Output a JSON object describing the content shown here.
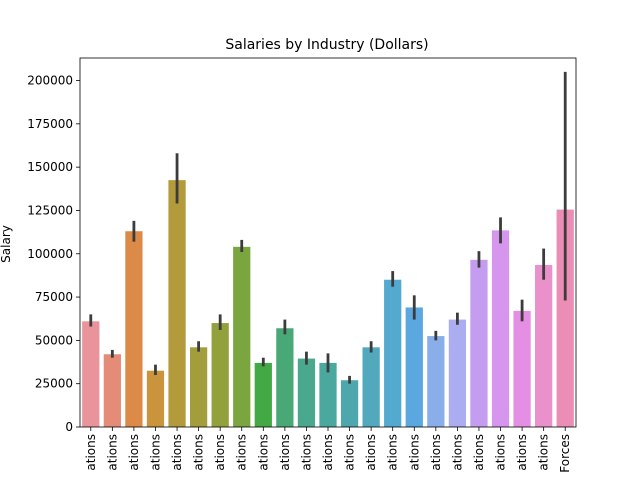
{
  "chart_data": {
    "type": "bar",
    "title": "Salaries by Industry (Dollars)",
    "xlabel": "",
    "ylabel": "Salary",
    "ylim": [
      0,
      213000
    ],
    "yticks": [
      0,
      25000,
      50000,
      75000,
      100000,
      125000,
      150000,
      175000,
      200000
    ],
    "grid": false,
    "legend": "none",
    "categories": [
      "ations",
      "ations",
      "ations",
      "ations",
      "ations",
      "ations",
      "ations",
      "ations",
      "ations",
      "ations",
      "ations",
      "ations",
      "ations",
      "ations",
      "ations",
      "ations",
      "ations",
      "ations",
      "ations",
      "ations",
      "ations",
      "ations",
      "Forces"
    ],
    "values": [
      61000,
      42000,
      113000,
      32500,
      142500,
      46000,
      60000,
      104000,
      37000,
      57000,
      39500,
      37000,
      27000,
      46000,
      85000,
      69000,
      52500,
      62000,
      96500,
      113500,
      67000,
      93500,
      125500
    ],
    "error_low": [
      58000,
      40000,
      107000,
      30000,
      129000,
      43500,
      56000,
      101000,
      35000,
      53500,
      36000,
      31500,
      25000,
      43000,
      81000,
      62000,
      50000,
      59000,
      92000,
      106000,
      61000,
      85000,
      73000
    ],
    "error_high": [
      65000,
      44500,
      119000,
      36000,
      158000,
      49500,
      65000,
      108000,
      40000,
      62000,
      43500,
      42500,
      29500,
      49500,
      90000,
      76000,
      55500,
      66000,
      101500,
      121000,
      73500,
      103000,
      205000
    ],
    "colors": [
      "#e9939b",
      "#e48c78",
      "#dc8a47",
      "#c9943b",
      "#b39a3b",
      "#a39e3b",
      "#93a13d",
      "#7aa53f",
      "#43a944",
      "#48a976",
      "#4aa88f",
      "#4ba89e",
      "#4da7ad",
      "#52a8bd",
      "#54a9ce",
      "#5ba7e0",
      "#89aee9",
      "#acadf0",
      "#c49df0",
      "#d696ee",
      "#e48fe4",
      "#ea90cb",
      "#eb8db4"
    ]
  }
}
